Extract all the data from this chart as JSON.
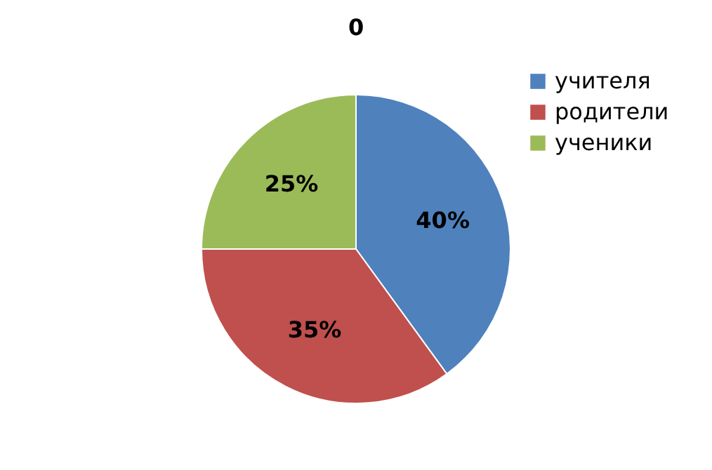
{
  "chart_data": {
    "type": "pie",
    "title": "0",
    "categories": [
      "учителя",
      "родители",
      "ученики"
    ],
    "values": [
      40,
      35,
      25
    ],
    "colors": [
      "#4f81bd",
      "#c0504d",
      "#9bbb59"
    ],
    "value_labels": [
      "40%",
      "35%",
      "25%"
    ],
    "legend": "top right"
  }
}
